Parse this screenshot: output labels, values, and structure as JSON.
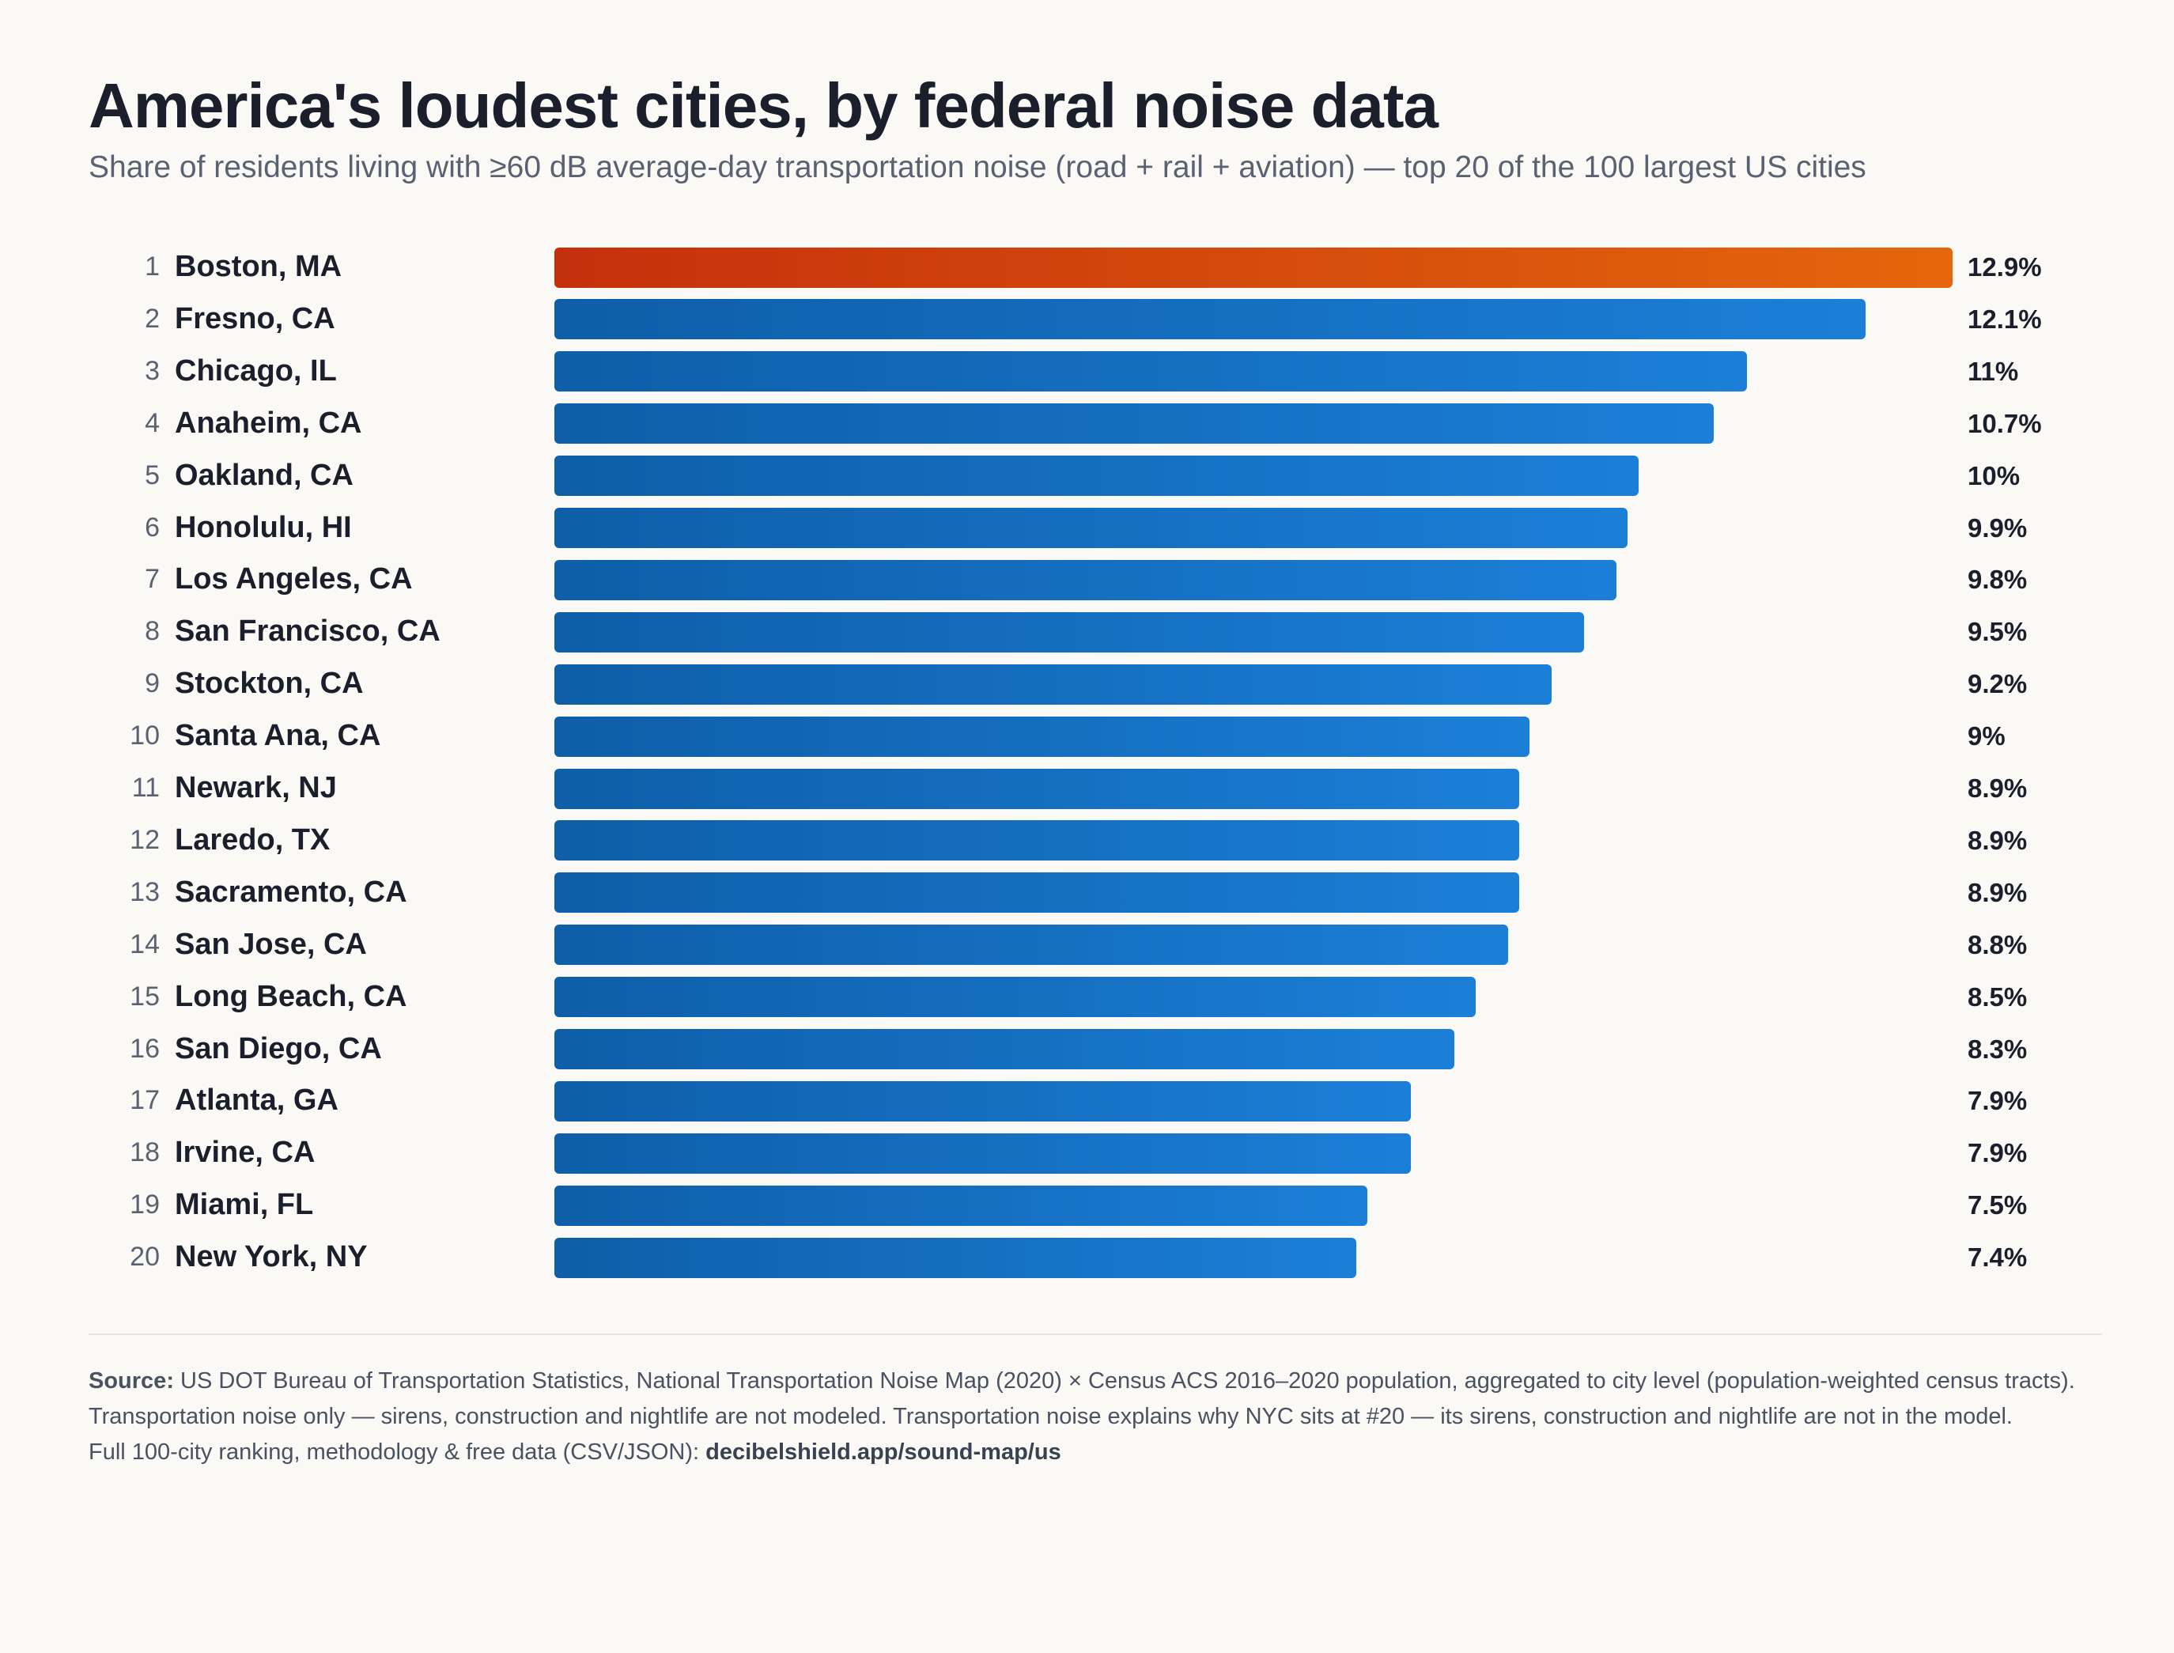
{
  "chart_data": {
    "type": "bar",
    "orientation": "horizontal",
    "title": "America's loudest cities, by federal noise data",
    "subtitle": "Share of residents living with ≥60 dB average-day transportation noise (road + rail + aviation) — top 20 of the 100 largest US cities",
    "xlabel": "",
    "ylabel": "",
    "grid": false,
    "legend": "none",
    "ranks": [
      "1",
      "2",
      "3",
      "4",
      "5",
      "6",
      "7",
      "8",
      "9",
      "10",
      "11",
      "12",
      "13",
      "14",
      "15",
      "16",
      "17",
      "18",
      "19",
      "20"
    ],
    "categories": [
      "Boston, MA",
      "Fresno, CA",
      "Chicago, IL",
      "Anaheim, CA",
      "Oakland, CA",
      "Honolulu, HI",
      "Los Angeles, CA",
      "San Francisco, CA",
      "Stockton, CA",
      "Santa Ana, CA",
      "Newark, NJ",
      "Laredo, TX",
      "Sacramento, CA",
      "San Jose, CA",
      "Long Beach, CA",
      "San Diego, CA",
      "Atlanta, GA",
      "Irvine, CA",
      "Miami, FL",
      "New York, NY"
    ],
    "values": [
      12.9,
      12.1,
      11,
      10.7,
      10,
      9.9,
      9.8,
      9.5,
      9.2,
      9,
      8.9,
      8.9,
      8.9,
      8.8,
      8.5,
      8.3,
      7.9,
      7.9,
      7.5,
      7.4
    ],
    "value_labels": [
      "12.9%",
      "12.1%",
      "11%",
      "10.7%",
      "10%",
      "9.9%",
      "9.8%",
      "9.5%",
      "9.2%",
      "9%",
      "8.9%",
      "8.9%",
      "8.9%",
      "8.8%",
      "8.5%",
      "8.3%",
      "7.9%",
      "7.9%",
      "7.5%",
      "7.4%"
    ],
    "xlim": [
      0,
      12.9
    ],
    "colors": {
      "highlight_start": "#c4300c",
      "highlight_end": "#e5660c",
      "bar_start": "#0e5ea8",
      "bar_end": "#1b7fd8"
    }
  },
  "footer": {
    "source_label": "Source:",
    "source_text": " US DOT Bureau of Transportation Statistics, National Transportation Noise Map (2020) × Census ACS 2016–2020 population, aggregated to city level (population-weighted census tracts). Transportation noise only — sirens, construction and nightlife are not modeled. Transportation noise explains why NYC sits at #20 — its sirens, construction and nightlife are not in the model.",
    "link_prefix": "Full 100-city ranking, methodology & free data (CSV/JSON): ",
    "link_text": "decibelshield.app/sound-map/us"
  }
}
